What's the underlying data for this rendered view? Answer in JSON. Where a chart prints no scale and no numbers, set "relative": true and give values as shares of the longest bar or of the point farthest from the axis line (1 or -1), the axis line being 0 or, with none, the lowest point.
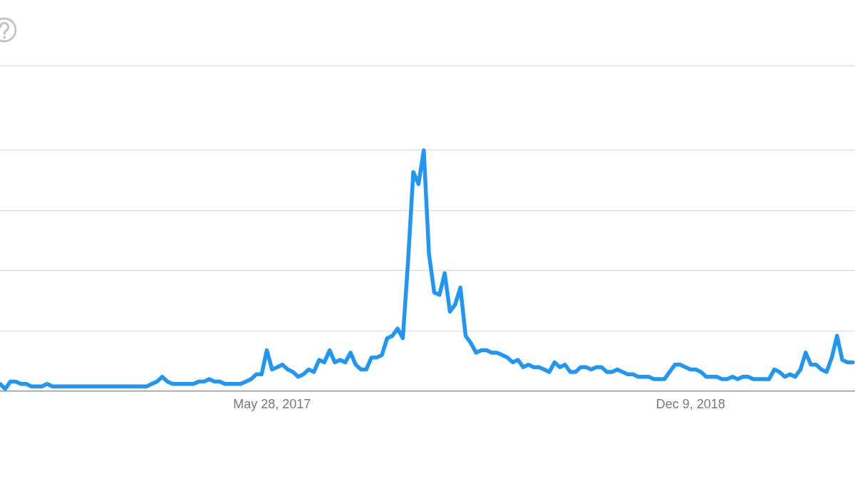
{
  "chart_data": {
    "type": "line",
    "relative": true,
    "x": [
      "2016-05-29",
      "2016-06-05",
      "2016-06-12",
      "2016-06-19",
      "2016-06-26",
      "2016-07-03",
      "2016-07-10",
      "2016-07-24",
      "2016-07-31",
      "2016-08-07",
      "2016-12-11",
      "2016-12-18",
      "2016-12-25",
      "2017-01-01",
      "2017-01-08",
      "2017-01-15",
      "2017-02-12",
      "2017-02-19",
      "2017-02-26",
      "2017-03-05",
      "2017-03-12",
      "2017-03-19",
      "2017-03-26",
      "2017-04-16",
      "2017-04-23",
      "2017-04-30",
      "2017-05-07",
      "2017-05-14",
      "2017-05-21",
      "2017-05-28",
      "2017-06-04",
      "2017-06-11",
      "2017-06-18",
      "2017-06-25",
      "2017-07-02",
      "2017-07-09",
      "2017-07-16",
      "2017-07-23",
      "2017-07-30",
      "2017-08-06",
      "2017-08-13",
      "2017-08-20",
      "2017-08-27",
      "2017-09-03",
      "2017-09-10",
      "2017-09-17",
      "2017-09-24",
      "2017-10-01",
      "2017-10-08",
      "2017-10-15",
      "2017-10-22",
      "2017-10-29",
      "2017-11-05",
      "2017-11-12",
      "2017-11-19",
      "2017-11-26",
      "2017-12-03",
      "2017-12-10",
      "2017-12-17",
      "2017-12-24",
      "2017-12-31",
      "2018-01-07",
      "2018-01-14",
      "2018-01-21",
      "2018-01-28",
      "2018-02-04",
      "2018-02-11",
      "2018-02-18",
      "2018-02-25",
      "2018-03-04",
      "2018-03-11",
      "2018-03-18",
      "2018-03-25",
      "2018-04-01",
      "2018-04-08",
      "2018-04-15",
      "2018-04-22",
      "2018-04-29",
      "2018-05-06",
      "2018-05-13",
      "2018-05-20",
      "2018-05-27",
      "2018-06-03",
      "2018-06-10",
      "2018-06-17",
      "2018-06-24",
      "2018-07-01",
      "2018-07-08",
      "2018-07-15",
      "2018-07-22",
      "2018-07-29",
      "2018-08-05",
      "2018-08-12",
      "2018-08-19",
      "2018-08-26",
      "2018-09-02",
      "2018-09-09",
      "2018-09-16",
      "2018-09-23",
      "2018-09-30",
      "2018-10-14",
      "2018-10-21",
      "2018-11-04",
      "2018-11-11",
      "2018-11-18",
      "2018-11-25",
      "2018-12-02",
      "2018-12-09",
      "2018-12-16",
      "2018-12-23",
      "2018-12-30",
      "2019-01-13",
      "2019-01-20",
      "2019-01-27",
      "2019-02-03",
      "2019-02-10",
      "2019-02-17",
      "2019-02-24",
      "2019-03-03",
      "2019-03-24",
      "2019-03-31",
      "2019-04-07",
      "2019-04-14",
      "2019-04-21",
      "2019-04-28",
      "2019-05-05",
      "2019-05-12",
      "2019-05-19",
      "2019-05-26",
      "2019-06-02",
      "2019-06-09",
      "2019-06-16",
      "2019-06-23",
      "2019-06-30",
      "2019-07-07",
      "2019-07-14"
    ],
    "series": [
      {
        "color": "#2196f3",
        "values": [
          0.03,
          0.01,
          0.04,
          0.04,
          0.03,
          0.03,
          0.02,
          0.02,
          0.03,
          0.02,
          0.02,
          0.03,
          0.04,
          0.06,
          0.04,
          0.03,
          0.03,
          0.04,
          0.04,
          0.05,
          0.04,
          0.04,
          0.03,
          0.03,
          0.04,
          0.05,
          0.07,
          0.07,
          0.17,
          0.09,
          0.1,
          0.11,
          0.09,
          0.08,
          0.06,
          0.07,
          0.09,
          0.08,
          0.13,
          0.12,
          0.17,
          0.12,
          0.13,
          0.12,
          0.16,
          0.11,
          0.09,
          0.09,
          0.14,
          0.14,
          0.15,
          0.22,
          0.23,
          0.26,
          0.22,
          0.54,
          0.91,
          0.86,
          1,
          0.57,
          0.41,
          0.4,
          0.49,
          0.33,
          0.36,
          0.43,
          0.23,
          0.2,
          0.16,
          0.17,
          0.17,
          0.16,
          0.16,
          0.15,
          0.14,
          0.12,
          0.13,
          0.1,
          0.11,
          0.1,
          0.1,
          0.09,
          0.08,
          0.12,
          0.1,
          0.11,
          0.08,
          0.08,
          0.1,
          0.1,
          0.09,
          0.1,
          0.1,
          0.08,
          0.08,
          0.09,
          0.08,
          0.07,
          0.07,
          0.06,
          0.06,
          0.05,
          0.05,
          0.08,
          0.11,
          0.11,
          0.1,
          0.09,
          0.09,
          0.08,
          0.06,
          0.06,
          0.05,
          0.05,
          0.06,
          0.05,
          0.06,
          0.06,
          0.05,
          0.05,
          0.09,
          0.08,
          0.06,
          0.07,
          0.06,
          0.09,
          0.16,
          0.11,
          0.11,
          0.09,
          0.08,
          0.14,
          0.23,
          0.13,
          0.12,
          0.12
        ]
      }
    ],
    "xlim": [
      "2016-05-29",
      "2019-07-17"
    ],
    "xticks": [
      {
        "value": "2017-05-28",
        "label": "May 28, 2017"
      },
      {
        "value": "2018-12-09",
        "label": "Dec 9, 2018"
      }
    ],
    "grid": "y",
    "tick_labels": "x",
    "marker": "none",
    "line_style": "solid"
  }
}
